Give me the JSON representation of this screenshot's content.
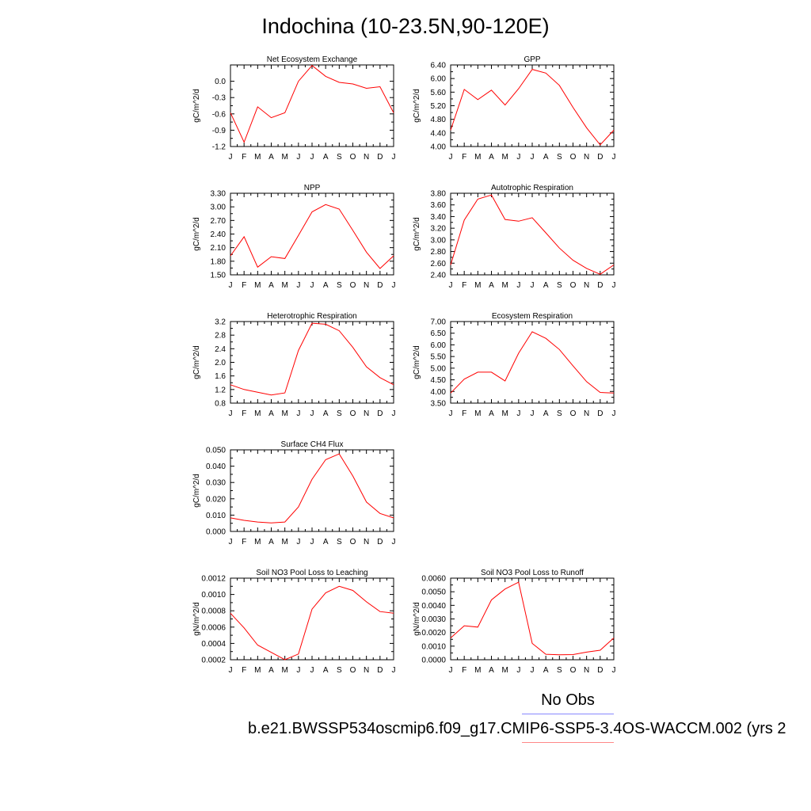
{
  "page_title": "Indochina (10-23.5N,90-120E)",
  "month_labels": [
    "J",
    "F",
    "M",
    "A",
    "M",
    "J",
    "J",
    "A",
    "S",
    "O",
    "N",
    "D",
    "J"
  ],
  "legend": {
    "obs_label": "No Obs",
    "case_label": "b.e21.BWSSP534oscmip6.f09_g17.CMIP6-SSP5-3.4OS-WACCM.002 (yrs 2",
    "obs_color": "#8888ff",
    "case_color": "#ff8888"
  },
  "line_color": "#ff0000",
  "chart_data": [
    {
      "type": "line",
      "title": "Net Ecosystem Exchange",
      "ylabel": "gC/m^2/d",
      "ylim": [
        -1.2,
        0.3
      ],
      "yticks": [
        "-1.2",
        "-0.9",
        "-0.6",
        "-0.3",
        "0.0"
      ],
      "yticks_values": [
        -1.2,
        -0.9,
        -0.6,
        -0.3,
        0.0
      ],
      "values": [
        -0.58,
        -1.12,
        -0.47,
        -0.67,
        -0.58,
        0.0,
        0.29,
        0.09,
        -0.02,
        -0.05,
        -0.13,
        -0.1,
        -0.58
      ]
    },
    {
      "type": "line",
      "title": "GPP",
      "ylabel": "gC/m^2/d",
      "ylim": [
        4.0,
        6.4
      ],
      "yticks": [
        "4.00",
        "4.40",
        "4.80",
        "5.20",
        "5.60",
        "6.00",
        "6.40"
      ],
      "yticks_values": [
        4.0,
        4.4,
        4.8,
        5.2,
        5.6,
        6.0,
        6.4
      ],
      "values": [
        4.48,
        5.68,
        5.38,
        5.66,
        5.22,
        5.7,
        6.27,
        6.16,
        5.8,
        5.15,
        4.55,
        4.05,
        4.48
      ]
    },
    {
      "type": "line",
      "title": "NPP",
      "ylabel": "gC/m^2/d",
      "ylim": [
        1.5,
        3.3
      ],
      "yticks": [
        "1.50",
        "1.80",
        "2.10",
        "2.40",
        "2.70",
        "3.00",
        "3.30"
      ],
      "yticks_values": [
        1.5,
        1.8,
        2.1,
        2.4,
        2.7,
        3.0,
        3.3
      ],
      "values": [
        1.92,
        2.34,
        1.67,
        1.9,
        1.86,
        2.37,
        2.89,
        3.05,
        2.95,
        2.48,
        2.0,
        1.64,
        1.92
      ]
    },
    {
      "type": "line",
      "title": "Autotrophic Respiration",
      "ylabel": "gC/m^2/d",
      "ylim": [
        2.4,
        3.8
      ],
      "yticks": [
        "2.40",
        "2.60",
        "2.80",
        "3.00",
        "3.20",
        "3.40",
        "3.60",
        "3.80"
      ],
      "yticks_values": [
        2.4,
        2.6,
        2.8,
        3.0,
        3.2,
        3.4,
        3.6,
        3.8
      ],
      "values": [
        2.57,
        3.34,
        3.7,
        3.77,
        3.35,
        3.32,
        3.38,
        3.12,
        2.86,
        2.65,
        2.51,
        2.41,
        2.57
      ]
    },
    {
      "type": "line",
      "title": "Heterotrophic Respiration",
      "ylabel": "gC/m^2/d",
      "ylim": [
        0.8,
        3.2
      ],
      "yticks": [
        "0.8",
        "1.2",
        "1.6",
        "2.0",
        "2.4",
        "2.8",
        "3.2"
      ],
      "yticks_values": [
        0.8,
        1.2,
        1.6,
        2.0,
        2.4,
        2.8,
        3.2
      ],
      "values": [
        1.34,
        1.2,
        1.12,
        1.04,
        1.1,
        2.35,
        3.15,
        3.12,
        2.93,
        2.44,
        1.87,
        1.55,
        1.34
      ]
    },
    {
      "type": "line",
      "title": "Ecosystem Respiration",
      "ylabel": "gC/m^2/d",
      "ylim": [
        3.5,
        7.0
      ],
      "yticks": [
        "3.50",
        "4.00",
        "4.50",
        "5.00",
        "5.50",
        "6.00",
        "6.50",
        "7.00"
      ],
      "yticks_values": [
        3.5,
        4.0,
        4.5,
        5.0,
        5.5,
        6.0,
        6.5,
        7.0
      ],
      "values": [
        3.93,
        4.53,
        4.83,
        4.83,
        4.45,
        5.64,
        6.56,
        6.28,
        5.8,
        5.1,
        4.42,
        3.96,
        3.93
      ]
    },
    {
      "type": "line",
      "title": "Surface CH4 Flux",
      "ylabel": "gC/m^2/d",
      "ylim": [
        0.0,
        0.05
      ],
      "yticks": [
        "0.000",
        "0.010",
        "0.020",
        "0.030",
        "0.040",
        "0.050"
      ],
      "yticks_values": [
        0.0,
        0.01,
        0.02,
        0.03,
        0.04,
        0.05
      ],
      "values": [
        0.0083,
        0.0068,
        0.0058,
        0.0052,
        0.0058,
        0.015,
        0.032,
        0.044,
        0.0475,
        0.034,
        0.018,
        0.011,
        0.0083
      ]
    },
    null,
    {
      "type": "line",
      "title": "Soil NO3 Pool Loss to Leaching",
      "ylabel": "gN/m^2/d",
      "ylim": [
        0.0002,
        0.0012
      ],
      "yticks": [
        "0.0002",
        "0.0004",
        "0.0006",
        "0.0008",
        "0.0010",
        "0.0012"
      ],
      "yticks_values": [
        0.0002,
        0.0004,
        0.0006,
        0.0008,
        0.001,
        0.0012
      ],
      "values": [
        0.00077,
        0.00059,
        0.00038,
        0.00029,
        0.0002,
        0.00027,
        0.00082,
        0.00102,
        0.0011,
        0.00105,
        0.00091,
        0.00079,
        0.00077
      ]
    },
    {
      "type": "line",
      "title": "Soil NO3 Pool Loss to Runoff",
      "ylabel": "gN/m^2/d",
      "ylim": [
        0.0,
        0.006
      ],
      "yticks": [
        "0.0000",
        "0.0010",
        "0.0020",
        "0.0030",
        "0.0040",
        "0.0050",
        "0.0060"
      ],
      "yticks_values": [
        0.0,
        0.001,
        0.002,
        0.003,
        0.004,
        0.005,
        0.006
      ],
      "values": [
        0.0016,
        0.0025,
        0.0024,
        0.0044,
        0.0052,
        0.0057,
        0.0012,
        0.0004,
        0.00036,
        0.00038,
        0.00056,
        0.0007,
        0.0016
      ]
    }
  ]
}
